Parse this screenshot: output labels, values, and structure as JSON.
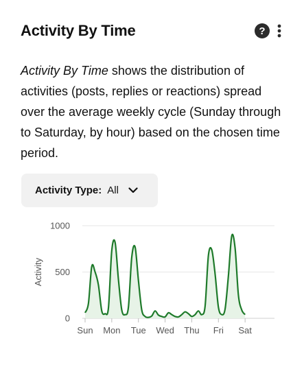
{
  "header": {
    "title": "Activity By Time",
    "help_icon": "help-circle-icon",
    "help_glyph": "?",
    "more_icon": "more-vertical-icon"
  },
  "description": {
    "italic_lead": "Activity By Time",
    "body": " shows the distribution of activities (posts, replies or reactions) spread over the average weekly cycle (Sunday through to Saturday, by hour) based on the chosen time period."
  },
  "filter": {
    "label": "Activity Type:",
    "value": "All",
    "icon": "chevron-down-icon"
  },
  "colors": {
    "line": "#1e7a2a",
    "fill": "#e7f3e7",
    "grid": "#e6e6e6",
    "axis_text": "#555555"
  },
  "chart_data": {
    "type": "area",
    "title": "",
    "xlabel": "",
    "ylabel": "Activity",
    "ylim": [
      0,
      1000
    ],
    "yticks": [
      0,
      500,
      1000
    ],
    "xticks": [
      "Sun",
      "Mon",
      "Tue",
      "Wed",
      "Thu",
      "Fri",
      "Sat"
    ],
    "x_start_hour": 0,
    "x_step_hours": 3,
    "grid": true,
    "series": [
      {
        "values": [
          60,
          160,
          560,
          500,
          360,
          80,
          50,
          110,
          730,
          820,
          420,
          90,
          40,
          120,
          660,
          770,
          410,
          90,
          20,
          10,
          25,
          80,
          35,
          20,
          15,
          60,
          40,
          20,
          15,
          40,
          70,
          50,
          20,
          40,
          80,
          40,
          130,
          680,
          740,
          480,
          120,
          40,
          100,
          460,
          890,
          760,
          250,
          90,
          40
        ]
      }
    ]
  }
}
